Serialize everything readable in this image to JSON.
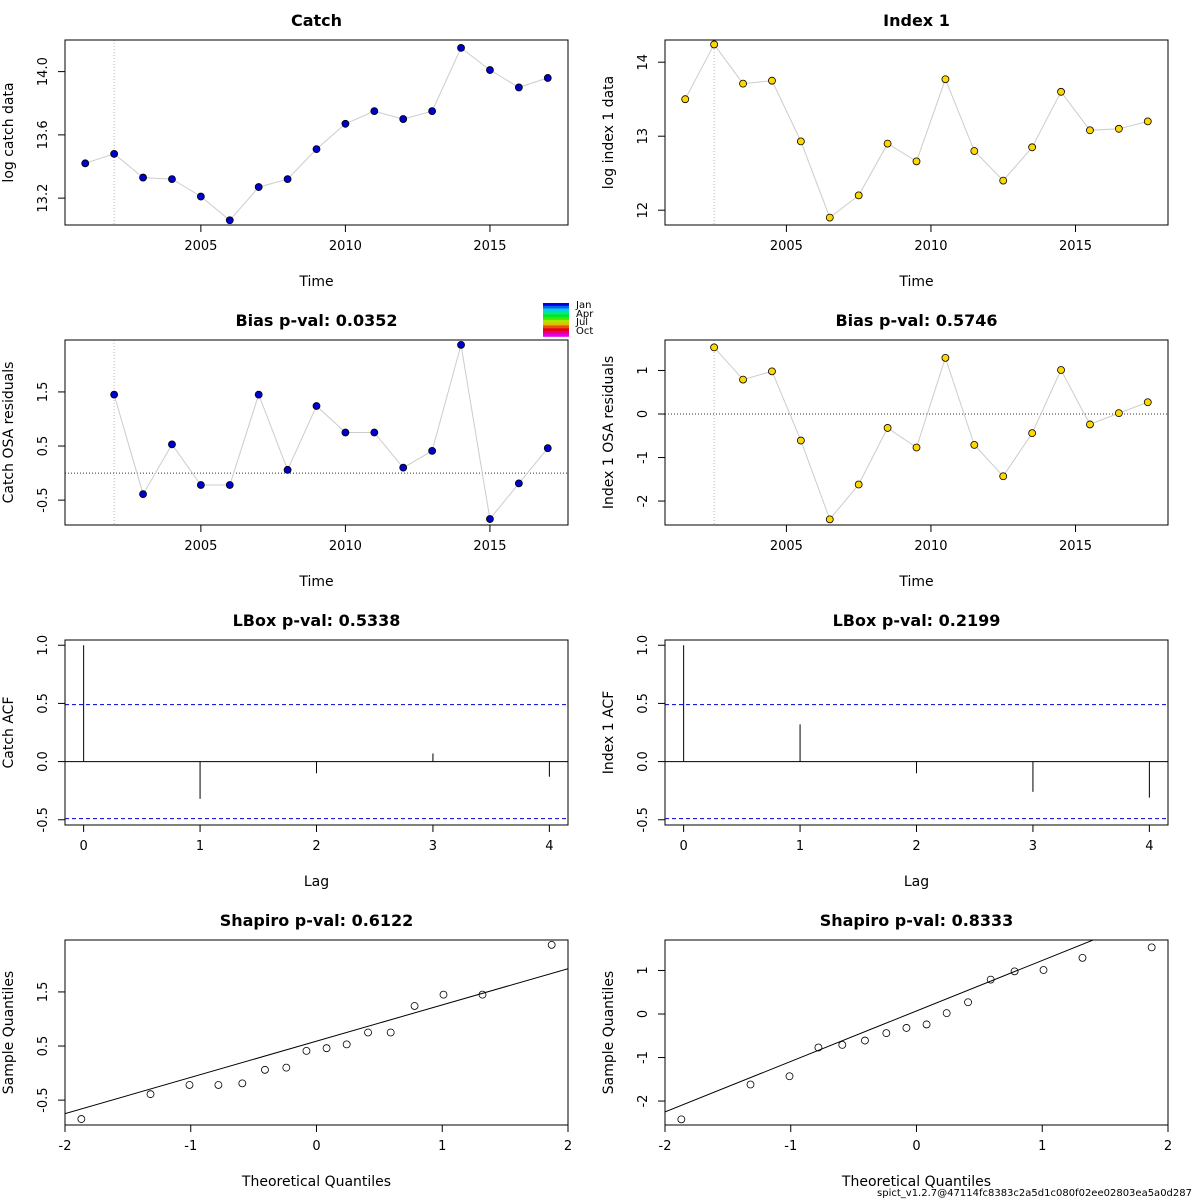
{
  "footer": "spict_v1.2.7@47114fc8383c2a5d1c080f02ee02803ea5a0d287",
  "colors": {
    "green": "#228B22",
    "red": "#FF0000",
    "catch_points": "#0000CD",
    "index_points": "#FFD700",
    "conf_band": "#0000CD"
  },
  "legend": {
    "labels": [
      "Jan",
      "Apr",
      "Jul",
      "Oct"
    ],
    "type": "colorbar"
  },
  "chart_data": [
    {
      "id": "catch-data",
      "type": "line",
      "title": "Catch",
      "title_color": "#000000",
      "xlabel": "Time",
      "ylabel": "log catch data",
      "xlim": [
        2000.3,
        2017.7
      ],
      "ylim": [
        13.03,
        14.2
      ],
      "xticks": [
        2005,
        2010,
        2015
      ],
      "yticks": [
        13.2,
        13.6,
        14.0
      ],
      "x": [
        2001,
        2002,
        2003,
        2004,
        2005,
        2006,
        2007,
        2008,
        2009,
        2010,
        2011,
        2012,
        2013,
        2014,
        2015,
        2016,
        2017
      ],
      "values": [
        13.42,
        13.48,
        13.33,
        13.32,
        13.21,
        13.06,
        13.27,
        13.32,
        13.51,
        13.67,
        13.75,
        13.7,
        13.75,
        14.15,
        14.01,
        13.9,
        13.96
      ],
      "vline": 2002,
      "hline": null,
      "point_color": "#0000CD"
    },
    {
      "id": "index-data",
      "type": "line",
      "title": "Index 1",
      "title_color": "#000000",
      "xlabel": "Time",
      "ylabel": "log index 1 data",
      "xlim": [
        2000.8,
        2018.2
      ],
      "ylim": [
        11.8,
        14.3
      ],
      "xticks": [
        2005,
        2010,
        2015
      ],
      "yticks": [
        12.0,
        13.0,
        14.0
      ],
      "x": [
        2001.5,
        2002.5,
        2003.5,
        2004.5,
        2005.5,
        2006.5,
        2007.5,
        2008.5,
        2009.5,
        2010.5,
        2011.5,
        2012.5,
        2013.5,
        2014.5,
        2015.5,
        2016.5,
        2017.5
      ],
      "values": [
        13.5,
        14.24,
        13.71,
        13.75,
        12.93,
        11.9,
        12.2,
        12.9,
        12.66,
        13.77,
        12.8,
        12.4,
        12.85,
        13.6,
        13.08,
        13.1,
        13.2
      ],
      "vline": 2002.5,
      "hline": null,
      "point_color": "#FFD700"
    },
    {
      "id": "catch-osa",
      "type": "line",
      "title": "Bias p-val: 0.0352",
      "title_color": "#FF0000",
      "xlabel": "Time",
      "ylabel": "Catch OSA residuals",
      "xlim": [
        2000.3,
        2017.7
      ],
      "ylim": [
        -0.96,
        2.46
      ],
      "xticks": [
        2005,
        2010,
        2015
      ],
      "yticks": [
        -0.5,
        0.5,
        1.5
      ],
      "x": [
        2002,
        2003,
        2004,
        2005,
        2006,
        2007,
        2008,
        2009,
        2010,
        2011,
        2012,
        2013,
        2014,
        2015,
        2016,
        2017
      ],
      "values": [
        1.45,
        -0.39,
        0.53,
        -0.22,
        -0.22,
        1.45,
        0.06,
        1.24,
        0.75,
        0.75,
        0.1,
        0.41,
        2.37,
        -0.85,
        -0.19,
        0.46
      ],
      "vline": 2002,
      "hline": 0,
      "point_color": "#0000CD"
    },
    {
      "id": "index-osa",
      "type": "line",
      "title": "Bias p-val: 0.5746",
      "title_color": "#228B22",
      "xlabel": "Time",
      "ylabel": "Index 1 OSA residuals",
      "xlim": [
        2000.8,
        2018.2
      ],
      "ylim": [
        -2.55,
        1.7
      ],
      "xticks": [
        2005,
        2010,
        2015
      ],
      "yticks": [
        -2,
        -1,
        0,
        1
      ],
      "x": [
        2002.5,
        2003.5,
        2004.5,
        2005.5,
        2006.5,
        2007.5,
        2008.5,
        2009.5,
        2010.5,
        2011.5,
        2012.5,
        2013.5,
        2014.5,
        2015.5,
        2016.5,
        2017.5
      ],
      "values": [
        1.53,
        0.79,
        0.98,
        -0.61,
        -2.42,
        -1.62,
        -0.32,
        -0.77,
        1.29,
        -0.71,
        -1.43,
        -0.44,
        1.01,
        -0.24,
        0.02,
        0.27
      ],
      "vline": 2002.5,
      "hline": 0,
      "point_color": "#FFD700"
    },
    {
      "id": "catch-acf",
      "type": "bar",
      "title": "LBox p-val: 0.5338",
      "title_color": "#228B22",
      "xlabel": "Lag",
      "ylabel": "Catch ACF",
      "xlim": [
        -0.16,
        4.16
      ],
      "ylim": [
        -0.545,
        1.045
      ],
      "xticks": [
        0,
        1,
        2,
        3,
        4
      ],
      "yticks": [
        -0.5,
        0.0,
        0.5,
        1.0
      ],
      "x": [
        0,
        1,
        2,
        3,
        4
      ],
      "values": [
        1.0,
        -0.32,
        -0.1,
        0.07,
        -0.13
      ],
      "conf": 0.49
    },
    {
      "id": "index-acf",
      "type": "bar",
      "title": "LBox p-val: 0.2199",
      "title_color": "#228B22",
      "xlabel": "Lag",
      "ylabel": "Index 1 ACF",
      "xlim": [
        -0.16,
        4.16
      ],
      "ylim": [
        -0.545,
        1.045
      ],
      "xticks": [
        0,
        1,
        2,
        3,
        4
      ],
      "yticks": [
        -0.5,
        0.0,
        0.5,
        1.0
      ],
      "x": [
        0,
        1,
        2,
        3,
        4
      ],
      "values": [
        1.0,
        0.32,
        -0.1,
        -0.26,
        -0.31
      ],
      "conf": 0.49
    },
    {
      "id": "catch-qq",
      "type": "scatter",
      "title": "Shapiro p-val: 0.6122",
      "title_color": "#228B22",
      "xlabel": "Theoretical Quantiles",
      "ylabel": "Sample Quantiles",
      "xlim": [
        -2.0,
        2.0
      ],
      "ylim": [
        -0.96,
        2.46
      ],
      "xticks": [
        -2,
        -1,
        0,
        1,
        2
      ],
      "yticks": [
        -0.5,
        0.5,
        1.5
      ],
      "x": [
        -1.87,
        -1.32,
        -1.01,
        -0.78,
        -0.59,
        -0.41,
        -0.24,
        -0.08,
        0.08,
        0.24,
        0.41,
        0.59,
        0.78,
        1.01,
        1.32,
        1.87
      ],
      "values": [
        -0.85,
        -0.39,
        -0.22,
        -0.22,
        -0.19,
        0.06,
        0.1,
        0.41,
        0.46,
        0.53,
        0.75,
        0.75,
        1.24,
        1.45,
        1.45,
        2.37
      ],
      "qqline": {
        "intercept": 0.59,
        "slope": 0.67
      }
    },
    {
      "id": "index-qq",
      "type": "scatter",
      "title": "Shapiro p-val: 0.8333",
      "title_color": "#228B22",
      "xlabel": "Theoretical Quantiles",
      "ylabel": "Sample Quantiles",
      "xlim": [
        -2.0,
        2.0
      ],
      "ylim": [
        -2.55,
        1.7
      ],
      "xticks": [
        -2,
        -1,
        0,
        1,
        2
      ],
      "yticks": [
        -2,
        -1,
        0,
        1
      ],
      "x": [
        -1.87,
        -1.32,
        -1.01,
        -0.78,
        -0.59,
        -0.41,
        -0.24,
        -0.08,
        0.08,
        0.24,
        0.41,
        0.59,
        0.78,
        1.01,
        1.32,
        1.87
      ],
      "values": [
        -2.42,
        -1.62,
        -1.43,
        -0.77,
        -0.71,
        -0.61,
        -0.44,
        -0.32,
        -0.24,
        0.02,
        0.27,
        0.79,
        0.98,
        1.01,
        1.29,
        1.53
      ],
      "qqline": {
        "intercept": 0.07,
        "slope": 1.16
      }
    }
  ]
}
